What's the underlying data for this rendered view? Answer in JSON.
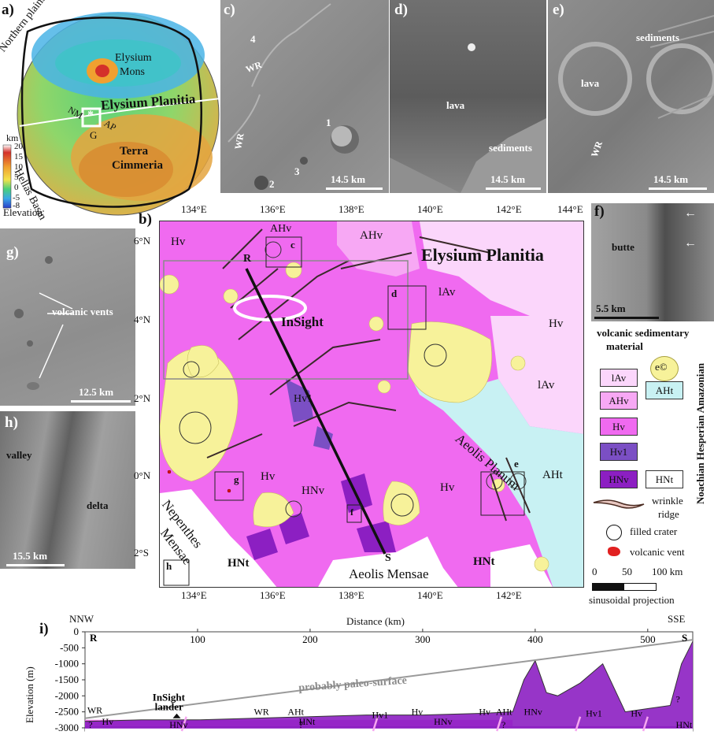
{
  "panel_a": {
    "label": "a)",
    "northern_plains": "Northern plains",
    "hellas": "Hellas Basin",
    "elysium_mons": [
      "Elysium",
      "Mons"
    ],
    "elysium_planitia": "Elysium Planitia",
    "nm": "NM",
    "ap": "AP",
    "g": "G",
    "terra": [
      "Terra",
      "Cimmeria"
    ],
    "colorbar_unit": "km",
    "colorbar_ticks": [
      "20",
      "15",
      "10",
      "5",
      "0",
      "-5",
      "-8"
    ],
    "elevation": "Elevation"
  },
  "panel_c": {
    "label": "c)",
    "n4": "4",
    "wr1": "WR",
    "wr2": "WR",
    "n1": "1",
    "n2": "2",
    "n3": "3",
    "scale": "14.5 km"
  },
  "panel_d": {
    "label": "d)",
    "lava": "lava",
    "sediments": "sediments",
    "scale": "14.5 km"
  },
  "panel_e": {
    "label": "e)",
    "sediments": "sediments",
    "lava": "lava",
    "wr": "WR",
    "scale": "14.5 km"
  },
  "panel_f": {
    "label": "f)",
    "butte": "butte",
    "scale": "5.5 km"
  },
  "panel_g": {
    "label": "g)",
    "vents": "volcanic vents",
    "scale": "12.5 km"
  },
  "panel_h": {
    "label": "h)",
    "valley": "valley",
    "delta": "delta",
    "scale": "15.5 km"
  },
  "panel_b": {
    "label": "b)",
    "lon_ticks": [
      "134°E",
      "136°E",
      "138°E",
      "140°E",
      "142°E",
      "144°E"
    ],
    "lat_ticks": [
      "6°N",
      "4°N",
      "2°N",
      "0°N",
      "2°S"
    ],
    "elysium_planitia": "Elysium Planitia",
    "insight": "InSight",
    "aeolis_planum": "Aeolis Planum",
    "nepenthes": [
      "Nepenthes",
      "Mensae"
    ],
    "aeolis_mensae": "Aeolis Mensae",
    "r": "R",
    "s": "S",
    "boxes": [
      "c",
      "d",
      "e",
      "f",
      "g",
      "h"
    ],
    "unit_labels": [
      {
        "t": "Hv"
      },
      {
        "t": "AHv"
      },
      {
        "t": "AHv"
      },
      {
        "t": "lAv"
      },
      {
        "t": "Hv"
      },
      {
        "t": "lAv"
      },
      {
        "t": "Hv1"
      },
      {
        "t": "Hv"
      },
      {
        "t": "HNv"
      },
      {
        "t": "Hv"
      },
      {
        "t": "AHt"
      },
      {
        "t": "HNt"
      },
      {
        "t": "HNt"
      }
    ]
  },
  "legend": {
    "title": [
      "volcanic sedimentary",
      "material"
    ],
    "ages": "Noachian Hesperian Amazonian",
    "crater_symbol": "e©",
    "units": [
      "lAv",
      "AHv",
      "Hv",
      "Hv1",
      "HNv"
    ],
    "sed_units": [
      "AHt",
      "HNt"
    ],
    "wrinkle_ridge": [
      "wrinkle",
      "ridge"
    ],
    "filled_crater": "filled crater",
    "volcanic_vent": "volcanic vent",
    "scale_ticks": [
      "0",
      "50",
      "100 km"
    ],
    "projection": "sinusoidal projection"
  },
  "colors": {
    "Hv": "#f06af0",
    "AHv": "#f7a8f4",
    "lAv": "#fbd6fb",
    "Hv1": "#7b4fc4",
    "HNv": "#8c1fc2",
    "AHt": "#c8f1f3",
    "HNt": "#ffffff",
    "crater": "#f7f29a"
  },
  "panel_i": {
    "label": "i)",
    "nnw": "NNW",
    "sse": "SSE",
    "r": "R",
    "s": "S",
    "xlabel": "Distance (km)",
    "ylabel": "Elevation (m)",
    "x_ticks": [
      "100",
      "200",
      "300",
      "400",
      "500"
    ],
    "y_ticks": [
      "0",
      "-500",
      "-1000",
      "-1500",
      "-2000",
      "-2500",
      "-3000"
    ],
    "paleo": "probably paleo-surface",
    "insight": [
      "InSight",
      "lander"
    ],
    "labels": [
      "WR",
      "Hv",
      "HNv",
      "WR",
      "AHt",
      "HNt",
      "Hv1",
      "Hv",
      "HNv",
      "Hv",
      "AHt",
      "HNv",
      "Hv1",
      "Hv",
      "HNt",
      "?",
      "?",
      "?",
      "?"
    ],
    "chart_data": {
      "type": "area",
      "title": "",
      "xlabel": "Distance (km)",
      "ylabel": "Elevation (m)",
      "xlim": [
        0,
        540
      ],
      "ylim": [
        -3100,
        0
      ],
      "series": [
        {
          "name": "",
          "x": [
            0,
            50,
            100,
            150,
            200,
            250,
            300,
            350,
            380,
            390,
            400,
            410,
            420,
            440,
            460,
            480,
            500,
            520,
            530,
            540
          ],
          "values": [
            -2800,
            -2750,
            -2750,
            -2700,
            -2650,
            -2600,
            -2600,
            -2550,
            -2500,
            -1500,
            -900,
            -1900,
            -2000,
            -1600,
            -1000,
            -2500,
            -2400,
            -2300,
            -1000,
            -300
          ]
        }
      ]
    }
  }
}
